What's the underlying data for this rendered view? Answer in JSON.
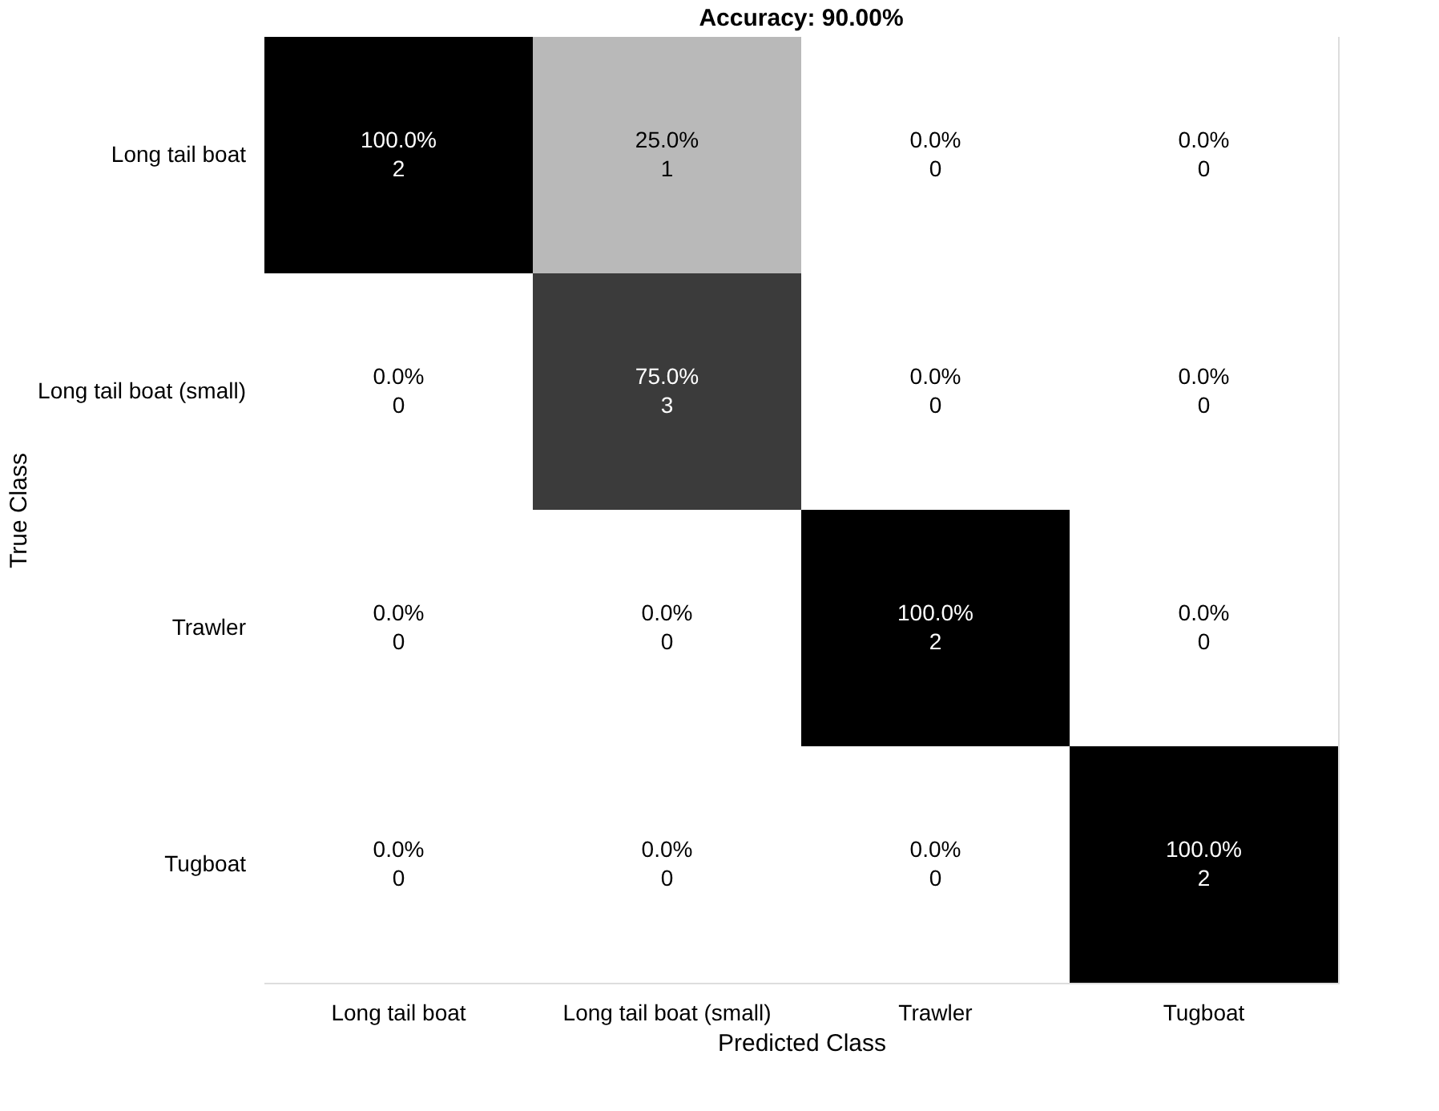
{
  "chart_data": {
    "type": "heatmap",
    "title": "Accuracy: 90.00%",
    "xlabel": "Predicted Class",
    "ylabel": "True Class",
    "data_labels": true,
    "categories": [
      "Long tail boat",
      "Long tail boat (small)",
      "Trawler",
      "Tugboat"
    ],
    "y_categories": [
      "Long tail boat",
      "Long tail boat (small)",
      "Trawler",
      "Tugboat"
    ],
    "cells": [
      [
        100.0,
        25.0,
        0.0,
        0.0
      ],
      [
        0.0,
        75.0,
        0.0,
        0.0
      ],
      [
        0.0,
        0.0,
        100.0,
        0.0
      ],
      [
        0.0,
        0.0,
        0.0,
        100.0
      ]
    ],
    "cell_labels": [
      [
        "100.0%",
        "25.0%",
        "0.0%",
        "0.0%"
      ],
      [
        "0.0%",
        "75.0%",
        "0.0%",
        "0.0%"
      ],
      [
        "0.0%",
        "0.0%",
        "100.0%",
        "0.0%"
      ],
      [
        "0.0%",
        "0.0%",
        "0.0%",
        "100.0%"
      ]
    ],
    "annotations": [
      "2",
      "1",
      "0",
      "0",
      "0",
      "3",
      "0",
      "0",
      "0",
      "0",
      "2",
      "0",
      "0",
      "0",
      "0",
      "2"
    ]
  }
}
